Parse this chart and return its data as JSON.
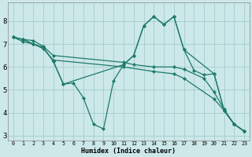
{
  "xlabel": "Humidex (Indice chaleur)",
  "bg_color": "#cce8e8",
  "line_color": "#1e7a6a",
  "grid_color": "#aad0d0",
  "xlim": [
    -0.5,
    23.5
  ],
  "ylim": [
    2.8,
    8.8
  ],
  "yticks": [
    3,
    4,
    5,
    6,
    7,
    8
  ],
  "xtick_labels": [
    "0",
    "1",
    "2",
    "3",
    "4",
    "5",
    "6",
    "7",
    "8",
    "9",
    "10",
    "11",
    "12",
    "13",
    "14",
    "15",
    "16",
    "17",
    "18",
    "19",
    "20",
    "21",
    "22",
    "23"
  ],
  "lines": [
    {
      "x": [
        0,
        1,
        2,
        3,
        4,
        11,
        12,
        14,
        16,
        17,
        19,
        20,
        21,
        22,
        23
      ],
      "y": [
        7.3,
        7.2,
        7.15,
        6.9,
        6.5,
        6.2,
        6.1,
        6.0,
        6.0,
        5.9,
        5.5,
        4.9,
        4.15,
        3.5,
        3.2
      ]
    },
    {
      "x": [
        0,
        1,
        2,
        3,
        4,
        11,
        14,
        16,
        17,
        20,
        21,
        22,
        23
      ],
      "y": [
        7.3,
        7.1,
        7.0,
        6.8,
        6.3,
        6.0,
        5.8,
        5.7,
        5.5,
        4.6,
        4.1,
        3.5,
        3.2
      ]
    },
    {
      "x": [
        0,
        1,
        2,
        3,
        4,
        5,
        6,
        7,
        8,
        9,
        10,
        11,
        12,
        13,
        14,
        15,
        16,
        17,
        18,
        19,
        20,
        21,
        22,
        23
      ],
      "y": [
        7.3,
        7.2,
        7.0,
        6.85,
        6.25,
        5.25,
        5.3,
        4.65,
        3.5,
        3.3,
        5.4,
        6.1,
        6.5,
        7.8,
        8.2,
        7.85,
        8.2,
        6.75,
        5.85,
        5.65,
        5.7,
        4.1,
        3.5,
        3.2
      ]
    },
    {
      "x": [
        0,
        1,
        2,
        3,
        4,
        5,
        11,
        12,
        13,
        14,
        15,
        16,
        17,
        20,
        21,
        22,
        23
      ],
      "y": [
        7.3,
        7.2,
        7.0,
        6.85,
        6.25,
        5.25,
        6.1,
        6.5,
        7.8,
        8.2,
        7.85,
        8.2,
        6.75,
        5.7,
        4.1,
        3.5,
        3.2
      ]
    }
  ]
}
